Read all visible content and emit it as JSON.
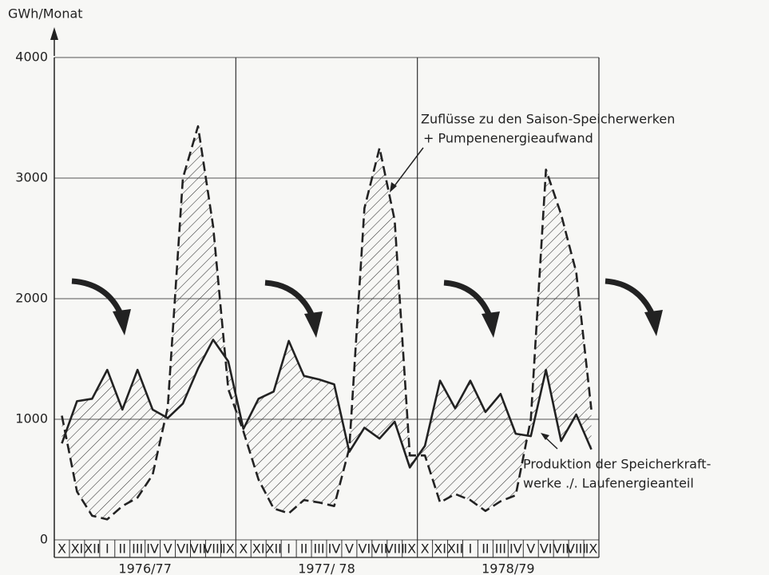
{
  "chart_data": {
    "type": "line",
    "y_label": "GWh/Monat",
    "categories": [
      "X",
      "XI",
      "XII",
      "I",
      "II",
      "III",
      "IV",
      "V",
      "VI",
      "VII",
      "VIII",
      "IX",
      "X",
      "XI",
      "XII",
      "I",
      "II",
      "III",
      "IV",
      "V",
      "VI",
      "VII",
      "VIII",
      "IX",
      "X",
      "XI",
      "XII",
      "I",
      "II",
      "III",
      "IV",
      "V",
      "VI",
      "VII",
      "VIII",
      "IX"
    ],
    "year_groups": [
      "1976/77",
      "1977/ 78",
      "1978/79"
    ],
    "ylim": [
      0,
      4000
    ],
    "yticks": [
      0,
      1000,
      2000,
      3000,
      4000
    ],
    "grid": true,
    "hatch_between": true,
    "series": [
      {
        "label_lines": [
          "Zuflüsse zu den Saison-Speicherwerken",
          "+ Pumpenenergieaufwand"
        ],
        "color": "#222",
        "dashed": true,
        "values": [
          1030,
          400,
          200,
          170,
          280,
          350,
          540,
          1100,
          3000,
          3430,
          2600,
          1250,
          900,
          500,
          260,
          220,
          330,
          310,
          280,
          760,
          2750,
          3250,
          2650,
          700,
          700,
          310,
          380,
          330,
          240,
          320,
          370,
          1000,
          3070,
          2700,
          2220,
          1080
        ]
      },
      {
        "label_lines": [
          "Produktion der Speicherkraft-",
          "werke ./. Laufenergieanteil"
        ],
        "color": "#222",
        "dashed": false,
        "values": [
          800,
          1150,
          1170,
          1410,
          1080,
          1410,
          1080,
          1010,
          1130,
          1420,
          1660,
          1480,
          920,
          1170,
          1230,
          1650,
          1360,
          1330,
          1290,
          730,
          930,
          840,
          980,
          600,
          780,
          1320,
          1090,
          1320,
          1060,
          1210,
          880,
          860,
          1410,
          820,
          1040,
          750
        ]
      }
    ]
  }
}
